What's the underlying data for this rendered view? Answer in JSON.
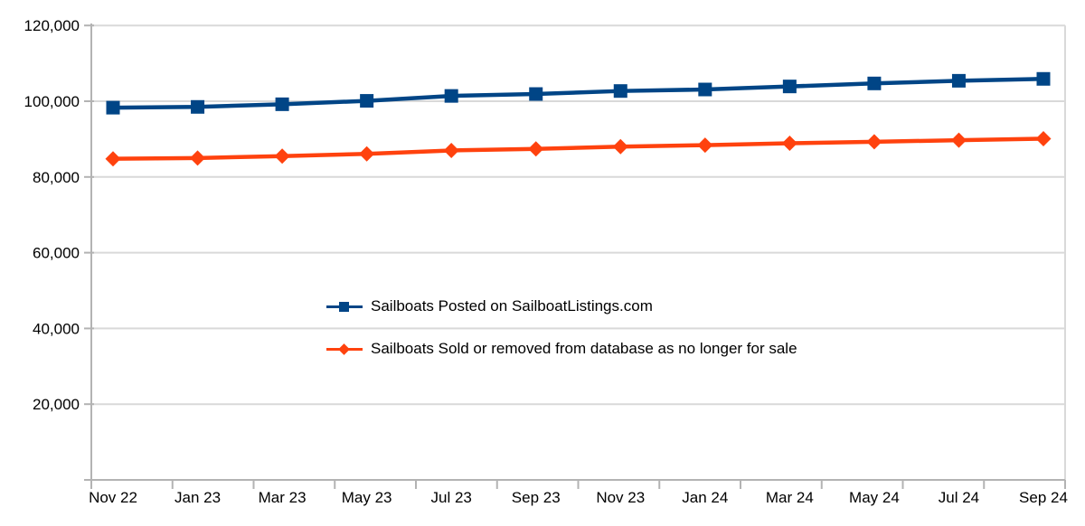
{
  "chart_data": {
    "type": "line",
    "categories": [
      "Nov 22",
      "Jan 23",
      "Mar 23",
      "May 23",
      "Jul 23",
      "Sep 23",
      "Nov 23",
      "Jan 24",
      "Mar 24",
      "May 24",
      "Jul 24",
      "Sep 24"
    ],
    "series": [
      {
        "name": "Sailboats Posted on SailboatListings.com",
        "marker": "square",
        "color": "#004586",
        "values": [
          98300,
          98500,
          99200,
          100100,
          101400,
          101900,
          102700,
          103100,
          103900,
          104700,
          105400,
          105900
        ]
      },
      {
        "name": "Sailboats Sold or removed from database as no longer for sale",
        "marker": "diamond",
        "color": "#FF420E",
        "values": [
          84800,
          85000,
          85500,
          86100,
          87000,
          87400,
          88000,
          88400,
          88900,
          89300,
          89700,
          90100
        ]
      }
    ],
    "title": "",
    "xlabel": "",
    "ylabel": "",
    "ylim": [
      0,
      120000
    ],
    "ytick_interval": 20000,
    "ytick_labels": [
      "20,000",
      "40,000",
      "60,000",
      "80,000",
      "100,000",
      "120,000"
    ],
    "grid": "horizontal-major",
    "legend_position": "inside-left-center",
    "colors": {
      "gridline": "#d9d9d9",
      "axis_line": "#b3b3b3",
      "tick_text": "#000000",
      "background": "#ffffff"
    }
  }
}
